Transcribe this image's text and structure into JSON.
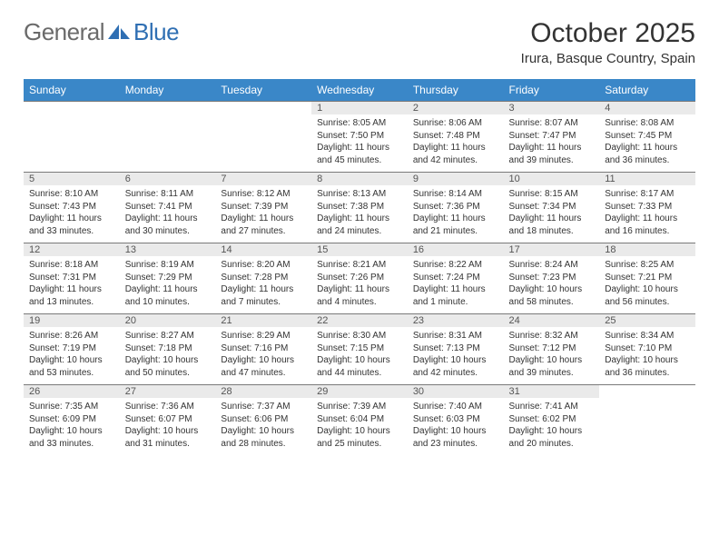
{
  "logo": {
    "brand_general": "General",
    "brand_blue": "Blue"
  },
  "title": "October 2025",
  "location": "Irura, Basque Country, Spain",
  "colors": {
    "header_bg": "#3a87c8",
    "header_text": "#ffffff",
    "daynum_bg": "#eaeaea",
    "rule": "#7a7a7a",
    "logo_gray": "#6a6a6a",
    "logo_blue": "#2f6fb3"
  },
  "day_headers": [
    "Sunday",
    "Monday",
    "Tuesday",
    "Wednesday",
    "Thursday",
    "Friday",
    "Saturday"
  ],
  "weeks": [
    [
      null,
      null,
      null,
      {
        "n": "1",
        "sunrise": "Sunrise: 8:05 AM",
        "sunset": "Sunset: 7:50 PM",
        "daylight": "Daylight: 11 hours and 45 minutes."
      },
      {
        "n": "2",
        "sunrise": "Sunrise: 8:06 AM",
        "sunset": "Sunset: 7:48 PM",
        "daylight": "Daylight: 11 hours and 42 minutes."
      },
      {
        "n": "3",
        "sunrise": "Sunrise: 8:07 AM",
        "sunset": "Sunset: 7:47 PM",
        "daylight": "Daylight: 11 hours and 39 minutes."
      },
      {
        "n": "4",
        "sunrise": "Sunrise: 8:08 AM",
        "sunset": "Sunset: 7:45 PM",
        "daylight": "Daylight: 11 hours and 36 minutes."
      }
    ],
    [
      {
        "n": "5",
        "sunrise": "Sunrise: 8:10 AM",
        "sunset": "Sunset: 7:43 PM",
        "daylight": "Daylight: 11 hours and 33 minutes."
      },
      {
        "n": "6",
        "sunrise": "Sunrise: 8:11 AM",
        "sunset": "Sunset: 7:41 PM",
        "daylight": "Daylight: 11 hours and 30 minutes."
      },
      {
        "n": "7",
        "sunrise": "Sunrise: 8:12 AM",
        "sunset": "Sunset: 7:39 PM",
        "daylight": "Daylight: 11 hours and 27 minutes."
      },
      {
        "n": "8",
        "sunrise": "Sunrise: 8:13 AM",
        "sunset": "Sunset: 7:38 PM",
        "daylight": "Daylight: 11 hours and 24 minutes."
      },
      {
        "n": "9",
        "sunrise": "Sunrise: 8:14 AM",
        "sunset": "Sunset: 7:36 PM",
        "daylight": "Daylight: 11 hours and 21 minutes."
      },
      {
        "n": "10",
        "sunrise": "Sunrise: 8:15 AM",
        "sunset": "Sunset: 7:34 PM",
        "daylight": "Daylight: 11 hours and 18 minutes."
      },
      {
        "n": "11",
        "sunrise": "Sunrise: 8:17 AM",
        "sunset": "Sunset: 7:33 PM",
        "daylight": "Daylight: 11 hours and 16 minutes."
      }
    ],
    [
      {
        "n": "12",
        "sunrise": "Sunrise: 8:18 AM",
        "sunset": "Sunset: 7:31 PM",
        "daylight": "Daylight: 11 hours and 13 minutes."
      },
      {
        "n": "13",
        "sunrise": "Sunrise: 8:19 AM",
        "sunset": "Sunset: 7:29 PM",
        "daylight": "Daylight: 11 hours and 10 minutes."
      },
      {
        "n": "14",
        "sunrise": "Sunrise: 8:20 AM",
        "sunset": "Sunset: 7:28 PM",
        "daylight": "Daylight: 11 hours and 7 minutes."
      },
      {
        "n": "15",
        "sunrise": "Sunrise: 8:21 AM",
        "sunset": "Sunset: 7:26 PM",
        "daylight": "Daylight: 11 hours and 4 minutes."
      },
      {
        "n": "16",
        "sunrise": "Sunrise: 8:22 AM",
        "sunset": "Sunset: 7:24 PM",
        "daylight": "Daylight: 11 hours and 1 minute."
      },
      {
        "n": "17",
        "sunrise": "Sunrise: 8:24 AM",
        "sunset": "Sunset: 7:23 PM",
        "daylight": "Daylight: 10 hours and 58 minutes."
      },
      {
        "n": "18",
        "sunrise": "Sunrise: 8:25 AM",
        "sunset": "Sunset: 7:21 PM",
        "daylight": "Daylight: 10 hours and 56 minutes."
      }
    ],
    [
      {
        "n": "19",
        "sunrise": "Sunrise: 8:26 AM",
        "sunset": "Sunset: 7:19 PM",
        "daylight": "Daylight: 10 hours and 53 minutes."
      },
      {
        "n": "20",
        "sunrise": "Sunrise: 8:27 AM",
        "sunset": "Sunset: 7:18 PM",
        "daylight": "Daylight: 10 hours and 50 minutes."
      },
      {
        "n": "21",
        "sunrise": "Sunrise: 8:29 AM",
        "sunset": "Sunset: 7:16 PM",
        "daylight": "Daylight: 10 hours and 47 minutes."
      },
      {
        "n": "22",
        "sunrise": "Sunrise: 8:30 AM",
        "sunset": "Sunset: 7:15 PM",
        "daylight": "Daylight: 10 hours and 44 minutes."
      },
      {
        "n": "23",
        "sunrise": "Sunrise: 8:31 AM",
        "sunset": "Sunset: 7:13 PM",
        "daylight": "Daylight: 10 hours and 42 minutes."
      },
      {
        "n": "24",
        "sunrise": "Sunrise: 8:32 AM",
        "sunset": "Sunset: 7:12 PM",
        "daylight": "Daylight: 10 hours and 39 minutes."
      },
      {
        "n": "25",
        "sunrise": "Sunrise: 8:34 AM",
        "sunset": "Sunset: 7:10 PM",
        "daylight": "Daylight: 10 hours and 36 minutes."
      }
    ],
    [
      {
        "n": "26",
        "sunrise": "Sunrise: 7:35 AM",
        "sunset": "Sunset: 6:09 PM",
        "daylight": "Daylight: 10 hours and 33 minutes."
      },
      {
        "n": "27",
        "sunrise": "Sunrise: 7:36 AM",
        "sunset": "Sunset: 6:07 PM",
        "daylight": "Daylight: 10 hours and 31 minutes."
      },
      {
        "n": "28",
        "sunrise": "Sunrise: 7:37 AM",
        "sunset": "Sunset: 6:06 PM",
        "daylight": "Daylight: 10 hours and 28 minutes."
      },
      {
        "n": "29",
        "sunrise": "Sunrise: 7:39 AM",
        "sunset": "Sunset: 6:04 PM",
        "daylight": "Daylight: 10 hours and 25 minutes."
      },
      {
        "n": "30",
        "sunrise": "Sunrise: 7:40 AM",
        "sunset": "Sunset: 6:03 PM",
        "daylight": "Daylight: 10 hours and 23 minutes."
      },
      {
        "n": "31",
        "sunrise": "Sunrise: 7:41 AM",
        "sunset": "Sunset: 6:02 PM",
        "daylight": "Daylight: 10 hours and 20 minutes."
      },
      null
    ]
  ]
}
